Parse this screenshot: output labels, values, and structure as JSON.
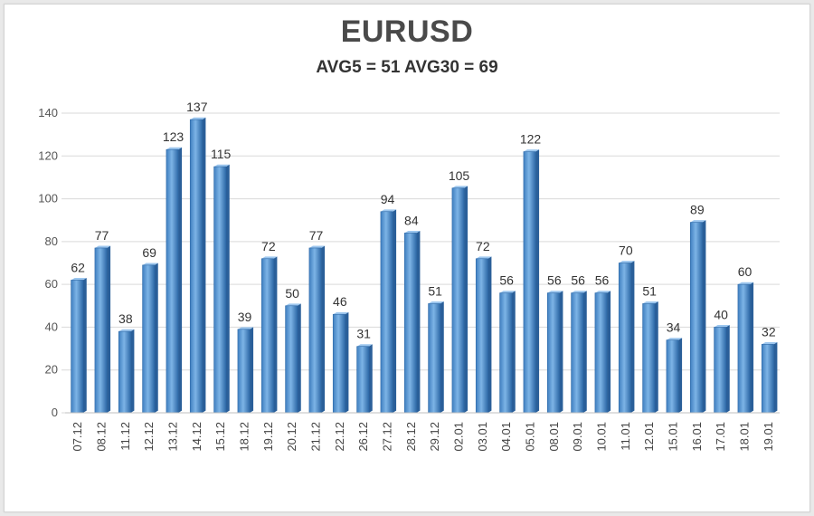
{
  "chart_data": {
    "type": "bar",
    "title": "EURUSD",
    "subtitle": "AVG5 = 51 AVG30 = 69",
    "xlabel": "",
    "ylabel": "",
    "ylim": [
      0,
      140
    ],
    "yticks": [
      0,
      20,
      40,
      60,
      80,
      100,
      120,
      140
    ],
    "grid": true,
    "legend": "none",
    "bar_color": "#5b9bd5",
    "categories": [
      "07.12",
      "08.12",
      "11.12",
      "12.12",
      "13.12",
      "14.12",
      "15.12",
      "18.12",
      "19.12",
      "20.12",
      "21.12",
      "22.12",
      "26.12",
      "27.12",
      "28.12",
      "29.12",
      "02.01",
      "03.01",
      "04.01",
      "05.01",
      "08.01",
      "09.01",
      "10.01",
      "11.01",
      "12.01",
      "15.01",
      "16.01",
      "17.01",
      "18.01",
      "19.01"
    ],
    "values": [
      62,
      77,
      38,
      69,
      123,
      137,
      115,
      39,
      72,
      50,
      77,
      46,
      31,
      94,
      84,
      51,
      105,
      72,
      56,
      122,
      56,
      56,
      56,
      70,
      51,
      34,
      89,
      40,
      60,
      32
    ]
  }
}
